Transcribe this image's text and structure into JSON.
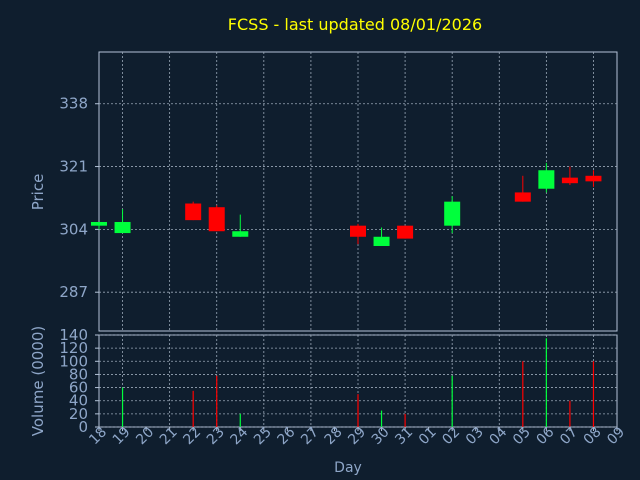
{
  "title": "FCSS - last updated 08/01/2026",
  "colors": {
    "background": "#0f1e2e",
    "title": "#ffff00",
    "axis_text": "#8ea6c8",
    "frame": "#b4c3d8",
    "grid": "#9aa8b8",
    "up": "#00ff3c",
    "down": "#ff0000"
  },
  "chart_data": [
    {
      "type": "candlestick",
      "ylabel": "Price",
      "yticks": [
        287,
        304,
        321,
        338
      ],
      "ylim": [
        276.5,
        352
      ],
      "x": [
        "18",
        "19",
        "20",
        "21",
        "22",
        "23",
        "24",
        "25",
        "26",
        "27",
        "28",
        "29",
        "30",
        "31",
        "01",
        "02",
        "03",
        "04",
        "05",
        "06",
        "07",
        "08",
        "09"
      ],
      "candles": [
        {
          "day": "18",
          "open": 305,
          "high": 306,
          "low": 304,
          "close": 306
        },
        {
          "day": "19",
          "open": 303,
          "high": 309.5,
          "low": 303,
          "close": 306
        },
        {
          "day": "22",
          "open": 311,
          "high": 311.5,
          "low": 306.5,
          "close": 306.5
        },
        {
          "day": "23",
          "open": 310,
          "high": 310.5,
          "low": 303.5,
          "close": 303.5
        },
        {
          "day": "24",
          "open": 302,
          "high": 308,
          "low": 302,
          "close": 303.5
        },
        {
          "day": "29",
          "open": 305,
          "high": 305.5,
          "low": 300,
          "close": 302
        },
        {
          "day": "30",
          "open": 299.5,
          "high": 304.5,
          "low": 299.5,
          "close": 302
        },
        {
          "day": "31",
          "open": 305,
          "high": 305,
          "low": 301.5,
          "close": 301.5
        },
        {
          "day": "02",
          "open": 305,
          "high": 313,
          "low": 303,
          "close": 311.5
        },
        {
          "day": "05",
          "open": 314,
          "high": 318.5,
          "low": 311.5,
          "close": 311.5
        },
        {
          "day": "06",
          "open": 315,
          "high": 322,
          "low": 314,
          "close": 320
        },
        {
          "day": "07",
          "open": 318,
          "high": 321,
          "low": 316,
          "close": 316.5
        },
        {
          "day": "08",
          "open": 318.5,
          "high": 320,
          "low": 315.5,
          "close": 317
        }
      ]
    },
    {
      "type": "bar",
      "ylabel": "Volume (0000)",
      "xlabel": "Day",
      "yticks": [
        0,
        20,
        40,
        60,
        80,
        100,
        120,
        140
      ],
      "ylim": [
        0,
        140
      ],
      "bars": [
        {
          "day": "18",
          "value": 0,
          "dir": "up"
        },
        {
          "day": "19",
          "value": 60,
          "dir": "up"
        },
        {
          "day": "22",
          "value": 55,
          "dir": "down"
        },
        {
          "day": "23",
          "value": 78,
          "dir": "down"
        },
        {
          "day": "24",
          "value": 20,
          "dir": "up"
        },
        {
          "day": "29",
          "value": 50,
          "dir": "down"
        },
        {
          "day": "30",
          "value": 25,
          "dir": "up"
        },
        {
          "day": "31",
          "value": 20,
          "dir": "down"
        },
        {
          "day": "02",
          "value": 78,
          "dir": "up"
        },
        {
          "day": "05",
          "value": 100,
          "dir": "down"
        },
        {
          "day": "06",
          "value": 135,
          "dir": "up"
        },
        {
          "day": "07",
          "value": 40,
          "dir": "down"
        },
        {
          "day": "08",
          "value": 100,
          "dir": "down"
        }
      ]
    }
  ]
}
